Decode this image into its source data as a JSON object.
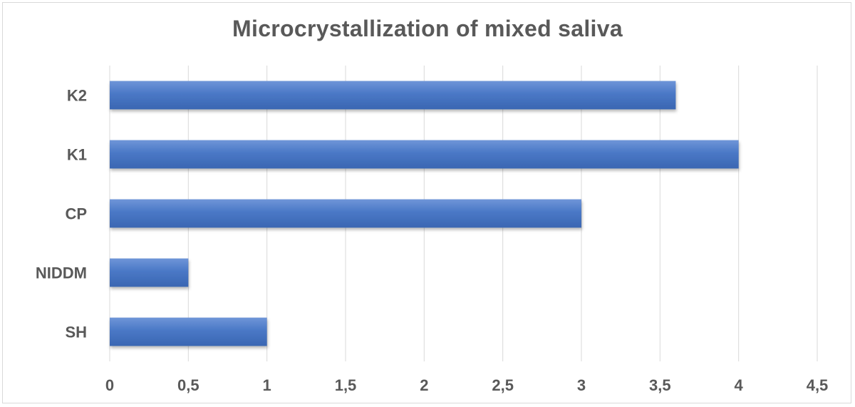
{
  "chart_data": {
    "type": "bar",
    "orientation": "horizontal",
    "title": "Microcrystallization of mixed saliva",
    "categories": [
      "K2",
      "K1",
      "CP",
      "NIDDM",
      "SH"
    ],
    "values": [
      3.6,
      4,
      3,
      0.5,
      1
    ],
    "xlim": [
      0,
      4.5
    ],
    "xticks": [
      "0",
      "0,5",
      "1",
      "1,5",
      "2",
      "2,5",
      "3",
      "3,5",
      "4",
      "4,5"
    ],
    "grid": true,
    "legend": "none",
    "bar_color": "#4472c4",
    "grid_color": "#d9d9d9",
    "text_color": "#595959"
  }
}
